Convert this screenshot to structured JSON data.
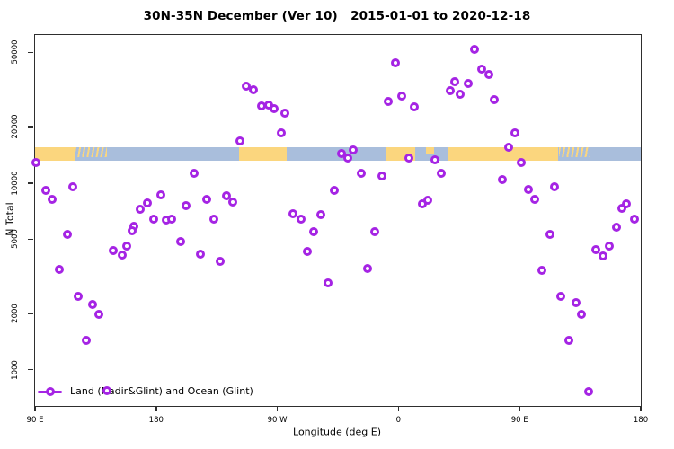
{
  "title": "30N-35N December (Ver 10)   2015-01-01 to 2020-12-18",
  "axes": {
    "y": {
      "label": "N Total",
      "scale": "log",
      "range": [
        640,
        62000
      ],
      "ticks": [
        1000,
        2000,
        5000,
        10000,
        20000,
        50000
      ],
      "tick_labels": [
        "1000",
        "2000",
        "5000",
        "10000",
        "20000",
        "50000"
      ]
    },
    "x": {
      "label": "Longitude (deg E)",
      "range_deg": [
        90,
        540
      ],
      "ticks": [
        {
          "deg": 90,
          "label": "90 E"
        },
        {
          "deg": 180,
          "label": "180"
        },
        {
          "deg": 270,
          "label": "90 W"
        },
        {
          "deg": 360,
          "label": "0"
        },
        {
          "deg": 450,
          "label": "90 E"
        },
        {
          "deg": 540,
          "label": "180"
        }
      ]
    }
  },
  "legend": {
    "label": "Land (Nadir&Glint) and Ocean (Glint)"
  },
  "colors": {
    "point": "#a524e4",
    "land": "#fbd67e",
    "ocean": "#a9bedc",
    "frame": "#2e2e2e",
    "text": "#000000"
  },
  "map_band": {
    "top_value": 15500,
    "bottom_value": 13200,
    "base": "ocean",
    "land_segments": [
      {
        "from": 0.0,
        "to": 0.065,
        "type": "land"
      },
      {
        "from": 0.065,
        "to": 0.119,
        "type": "mixed"
      },
      {
        "from": 0.337,
        "to": 0.415,
        "type": "land"
      },
      {
        "from": 0.579,
        "to": 0.628,
        "type": "land"
      },
      {
        "from": 0.645,
        "to": 0.659,
        "type": "land-half"
      },
      {
        "from": 0.681,
        "to": 0.864,
        "type": "land"
      },
      {
        "from": 0.865,
        "to": 0.916,
        "type": "mixed"
      }
    ]
  },
  "chart_data": {
    "type": "scatter",
    "title": "30N-35N December (Ver 10)   2015-01-01 to 2020-12-18",
    "xlabel": "Longitude (deg E)",
    "ylabel": "N Total",
    "y_scale": "log",
    "ylim": [
      640,
      62000
    ],
    "x_axis_deg": [
      90,
      540
    ],
    "series_name": "Land (Nadir&Glint) and Ocean (Glint)",
    "points_deg_value": [
      [
        90.5,
        12900
      ],
      [
        98,
        9150
      ],
      [
        102.7,
        8200
      ],
      [
        118,
        9570
      ],
      [
        168,
        7260
      ],
      [
        173.4,
        7840
      ],
      [
        183.5,
        8660
      ],
      [
        202,
        7580
      ],
      [
        208,
        11300
      ],
      [
        217.5,
        8200
      ],
      [
        223,
        6430
      ],
      [
        232,
        8570
      ],
      [
        237,
        7930
      ],
      [
        178,
        6430
      ],
      [
        187.5,
        6360
      ],
      [
        191.5,
        6430
      ],
      [
        163.4,
        5880
      ],
      [
        114,
        5320
      ],
      [
        162,
        5560
      ],
      [
        148,
        4360
      ],
      [
        154.8,
        4130
      ],
      [
        158,
        4610
      ],
      [
        198,
        4870
      ],
      [
        213,
        4170
      ],
      [
        227.5,
        3820
      ],
      [
        108,
        3460
      ],
      [
        122,
        2480
      ],
      [
        132.7,
        2240
      ],
      [
        137.4,
        1990
      ],
      [
        128,
        1440
      ],
      [
        143.4,
        775
      ],
      [
        357.7,
        44100
      ],
      [
        247,
        33100
      ],
      [
        252,
        31600
      ],
      [
        258,
        25900
      ],
      [
        263.6,
        26200
      ],
      [
        267.6,
        25100
      ],
      [
        275.6,
        23700
      ],
      [
        273,
        18600
      ],
      [
        242,
        16800
      ],
      [
        352.4,
        27400
      ],
      [
        362.4,
        29300
      ],
      [
        371.7,
        25600
      ],
      [
        317.6,
        14300
      ],
      [
        326.3,
        15100
      ],
      [
        322.3,
        13600
      ],
      [
        367.7,
        13600
      ],
      [
        387,
        13300
      ],
      [
        391.7,
        11300
      ],
      [
        332.4,
        11300
      ],
      [
        347.7,
        10900
      ],
      [
        312.3,
        9150
      ],
      [
        377.8,
        7760
      ],
      [
        381.8,
        8110
      ],
      [
        281.6,
        6870
      ],
      [
        287.6,
        6430
      ],
      [
        302.3,
        6790
      ],
      [
        297,
        5500
      ],
      [
        342.4,
        5500
      ],
      [
        292.3,
        4310
      ],
      [
        337,
        3490
      ],
      [
        307.7,
        2930
      ],
      [
        416.5,
        52100
      ],
      [
        421.8,
        40800
      ],
      [
        427,
        38200
      ],
      [
        401.8,
        34900
      ],
      [
        411.8,
        34200
      ],
      [
        398.4,
        31300
      ],
      [
        405.8,
        29900
      ],
      [
        431,
        28000
      ],
      [
        446.5,
        18600
      ],
      [
        441.8,
        15600
      ],
      [
        451,
        12900
      ],
      [
        437,
        10450
      ],
      [
        456.6,
        9260
      ],
      [
        461,
        8200
      ],
      [
        476,
        9570
      ],
      [
        529,
        7760
      ],
      [
        526,
        7340
      ],
      [
        535,
        6430
      ],
      [
        522,
        5810
      ],
      [
        472.5,
        5320
      ],
      [
        506.6,
        4410
      ],
      [
        516.6,
        4610
      ],
      [
        512,
        4080
      ],
      [
        466.5,
        3420
      ],
      [
        480.6,
        2480
      ],
      [
        492,
        2290
      ],
      [
        496,
        1990
      ],
      [
        486.6,
        1430
      ],
      [
        501.3,
        767
      ]
    ]
  }
}
